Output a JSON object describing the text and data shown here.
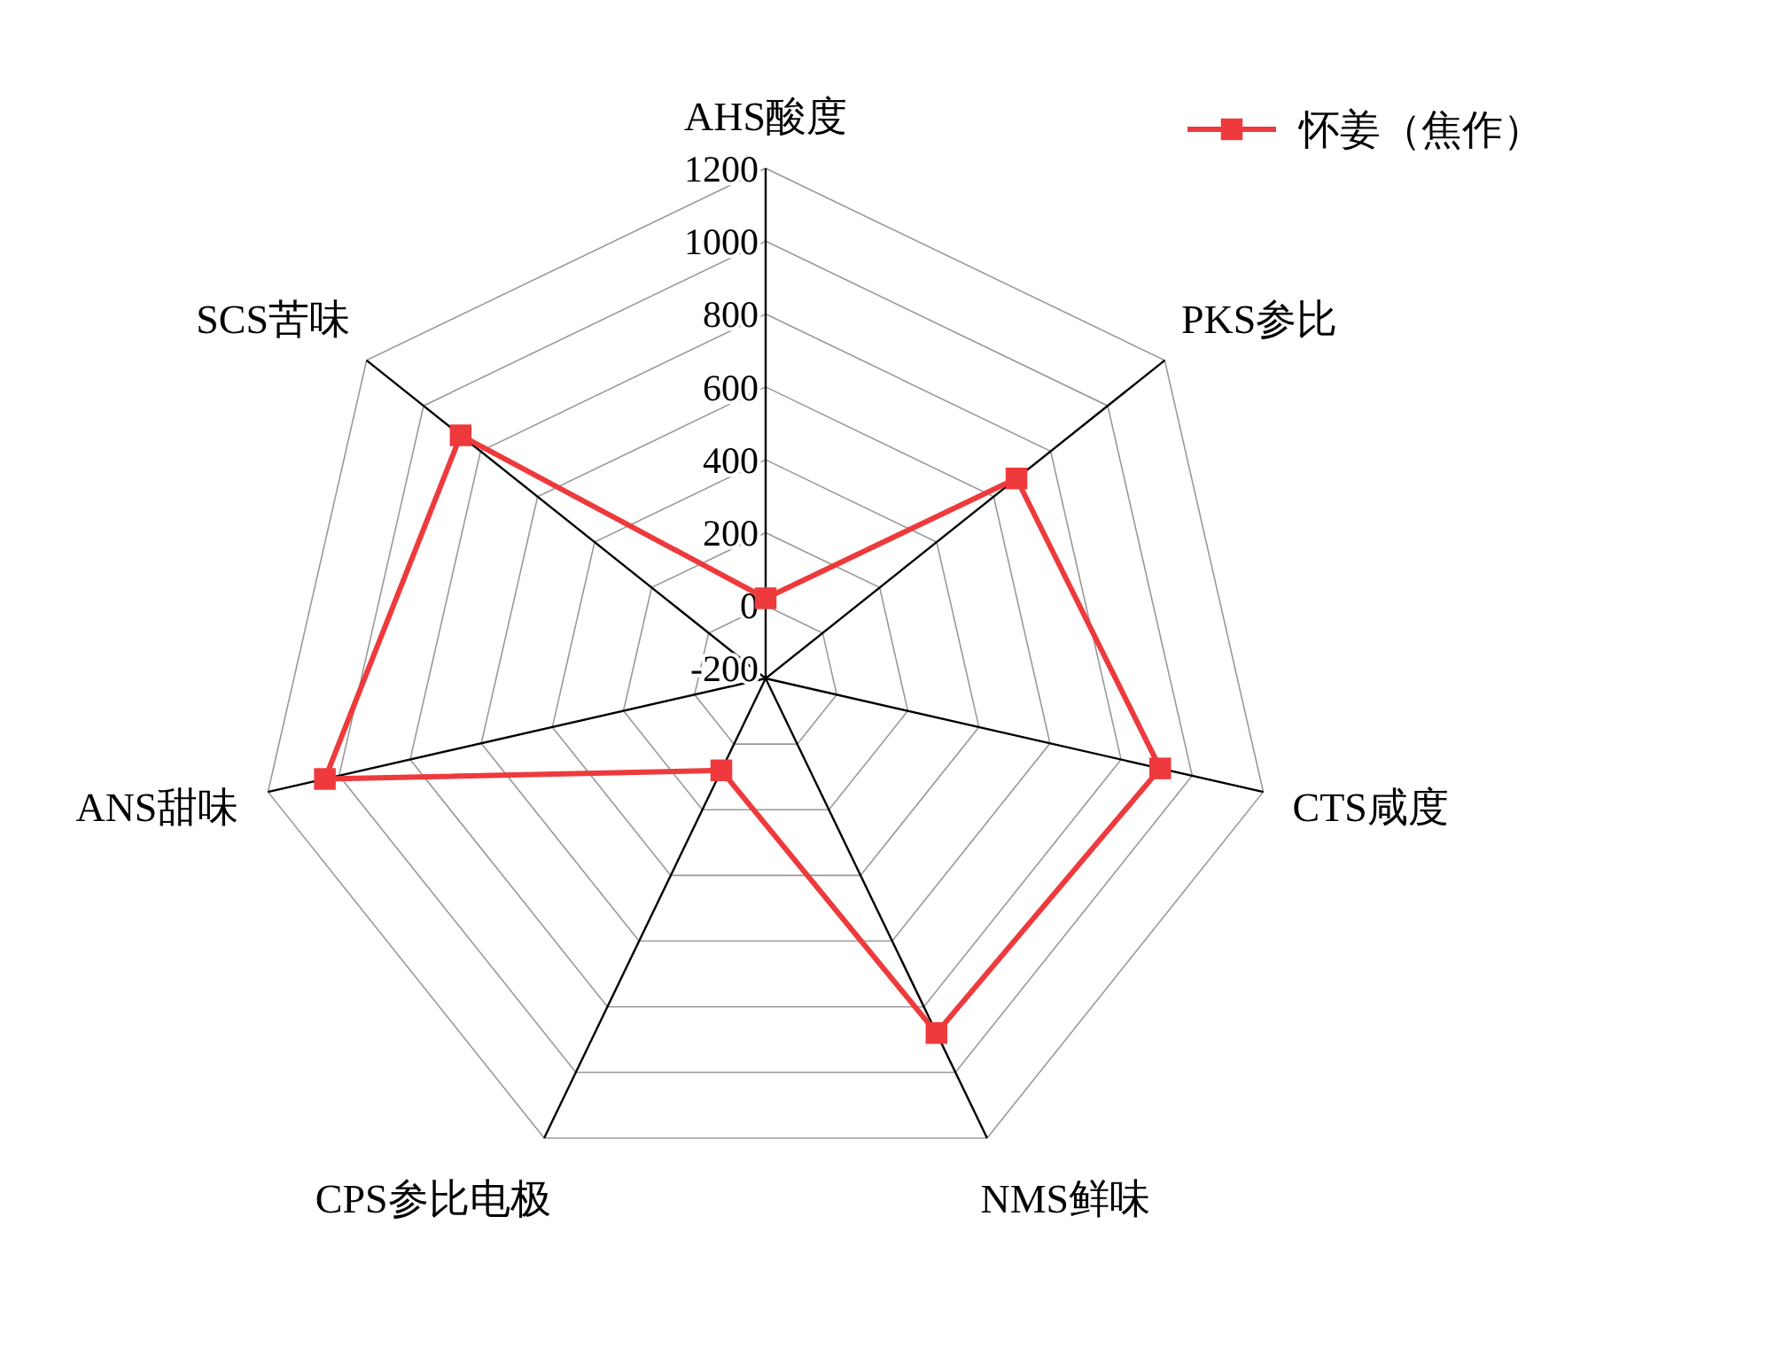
{
  "chart_data": {
    "type": "radar",
    "categories": [
      "AHS酸度",
      "PKS参比",
      "CTS咸度",
      "NMS鲜味",
      "CPS参比电极",
      "ANS甜味",
      "SCS苦味"
    ],
    "series": [
      {
        "name": "怀姜（焦作）",
        "color": "#ee3a3c",
        "values": [
          20,
          680,
          910,
          880,
          80,
          1040,
          870
        ]
      }
    ],
    "ylim": [
      -200,
      1200
    ],
    "yticks": [
      -200,
      0,
      200,
      400,
      600,
      800,
      1000,
      1200
    ],
    "marker": "square",
    "legend": "top right",
    "grid": true
  }
}
